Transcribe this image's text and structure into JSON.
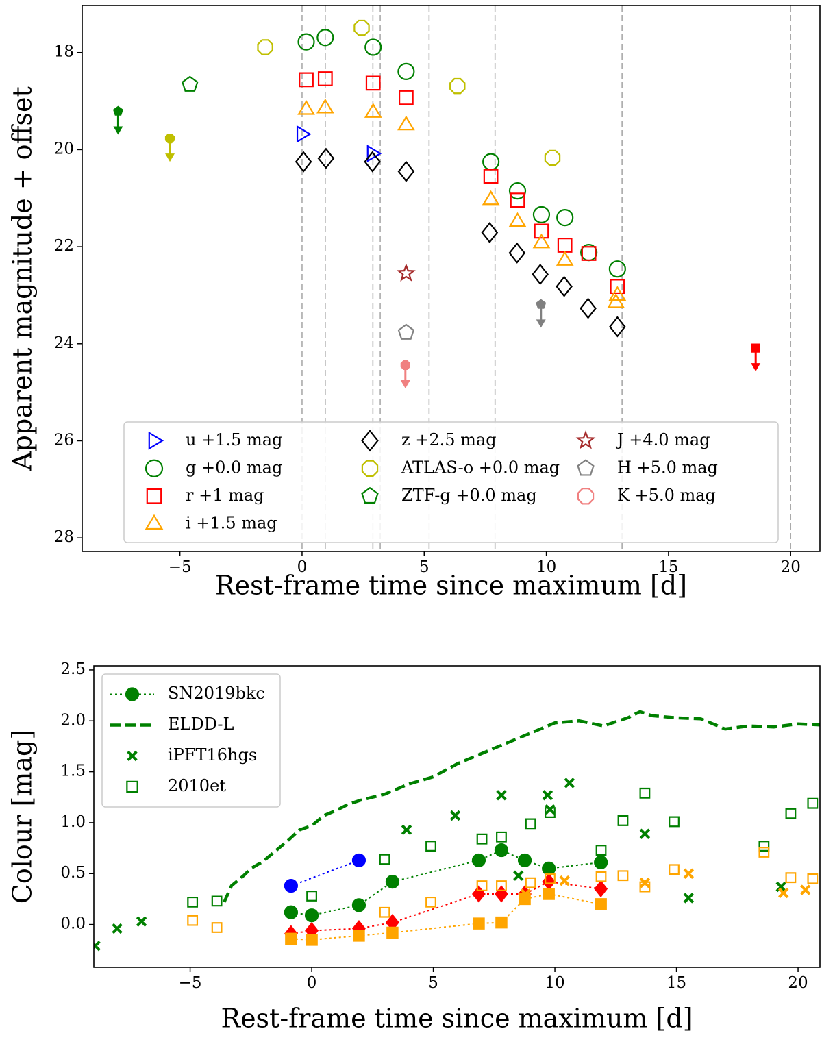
{
  "chart_data": [
    {
      "type": "scatter",
      "xlabel": "Rest-frame time since maximum [d]",
      "ylabel": "Apparent magnitude + offset",
      "xlim": [
        -9.0,
        21.2
      ],
      "ylim": [
        28.28,
        17.03
      ],
      "xticks": [
        {
          "value": -5,
          "label": "−5"
        },
        0,
        5,
        10,
        15,
        20
      ],
      "yticks": [
        18,
        20,
        22,
        24,
        26,
        28
      ],
      "vlines": [
        0,
        0.95,
        2.9,
        3.2,
        5.2,
        7.9,
        13.1,
        20.0
      ],
      "legend": "lower center",
      "legend_columns": 3,
      "series": [
        {
          "name": "u +1.5 mag",
          "color": "#0000ff",
          "marker": "triangle-right",
          "x": [
            0.0,
            2.88
          ],
          "values": [
            19.68,
            20.08
          ]
        },
        {
          "name": "g +0.0 mag",
          "color": "#008000",
          "marker": "circle",
          "x": [
            0.17,
            0.95,
            2.91,
            4.26,
            7.73,
            8.82,
            9.8,
            10.76,
            11.74,
            12.91
          ],
          "values": [
            17.78,
            17.69,
            17.89,
            18.39,
            20.25,
            20.85,
            21.34,
            21.4,
            22.12,
            22.46
          ]
        },
        {
          "name": "r +1 mag",
          "color": "#ff0000",
          "marker": "square",
          "x": [
            0.17,
            0.95,
            2.91,
            4.26,
            7.73,
            8.82,
            9.8,
            10.76,
            11.74,
            12.91
          ],
          "values": [
            18.56,
            18.54,
            18.63,
            18.93,
            20.55,
            21.04,
            21.68,
            21.97,
            22.14,
            22.82
          ],
          "upper_limits": {
            "x": [
              18.57
            ],
            "values": [
              24.09
            ]
          }
        },
        {
          "name": "i +1.5 mag",
          "color": "#ffa500",
          "marker": "triangle-up",
          "x": [
            0.17,
            0.95,
            2.91,
            4.26,
            7.73,
            8.82,
            9.8,
            10.76,
            12.91,
            12.85
          ],
          "values": [
            19.17,
            19.14,
            19.23,
            19.49,
            21.03,
            21.48,
            21.92,
            22.28,
            23.0,
            23.15
          ]
        },
        {
          "name": "z +2.5 mag",
          "color": "#000000",
          "marker": "diamond",
          "x": [
            0.06,
            0.98,
            2.88,
            4.26,
            7.68,
            8.8,
            9.75,
            10.73,
            11.71,
            12.91
          ],
          "values": [
            20.25,
            20.18,
            20.25,
            20.45,
            21.71,
            22.13,
            22.57,
            22.82,
            23.27,
            23.65
          ]
        },
        {
          "name": "ATLAS-o +0.0 mag",
          "color": "#bfbf00",
          "marker": "octagon",
          "x": [
            -1.51,
            2.44,
            6.36,
            10.25
          ],
          "values": [
            17.89,
            17.49,
            18.69,
            20.17
          ],
          "upper_limits": {
            "x": [
              -5.41
            ],
            "values": [
              19.77
            ]
          }
        },
        {
          "name": "ZTF-g +0.0 mag",
          "color": "#008000",
          "marker": "pentagon",
          "x": [
            -4.59
          ],
          "values": [
            18.66
          ],
          "upper_limits": {
            "x": [
              -7.53
            ],
            "values": [
              19.21
            ]
          }
        },
        {
          "name": "J +4.0 mag",
          "color": "#a52a2a",
          "marker": "star",
          "x": [
            4.26
          ],
          "values": [
            22.55
          ]
        },
        {
          "name": "H +5.0 mag",
          "color": "#808080",
          "marker": "pentagon",
          "x": [
            4.26
          ],
          "values": [
            23.77
          ],
          "upper_limits": {
            "x": [
              9.78
            ],
            "values": [
              23.19
            ]
          }
        },
        {
          "name": "K +5.0 mag",
          "color": "#f08080",
          "marker": "octagon",
          "x": [],
          "values": [],
          "upper_limits": {
            "x": [
              4.23
            ],
            "values": [
              24.44
            ]
          }
        }
      ]
    },
    {
      "type": "scatter",
      "xlabel": "Rest-frame time since maximum [d]",
      "ylabel": "Colour [mag]",
      "xlim": [
        -8.96,
        20.9
      ],
      "ylim": [
        -0.42,
        2.54
      ],
      "xticks": [
        {
          "value": -5,
          "label": "−5"
        },
        0,
        5,
        10,
        15,
        20
      ],
      "yticks": [
        {
          "value": 0,
          "label": "0.0"
        },
        0.5,
        {
          "value": 1,
          "label": "1.0"
        },
        1.5,
        {
          "value": 2,
          "label": "2.0"
        },
        2.5
      ],
      "legend": "upper left",
      "series": [
        {
          "name": "SN2019bkc",
          "color": "#008000",
          "style": "dotted",
          "marker": "filled-circle",
          "x": [
            -0.85,
            0,
            1.94,
            3.32,
            6.87,
            7.8,
            8.76,
            9.75,
            11.89
          ],
          "values": [
            0.12,
            0.09,
            0.19,
            0.42,
            0.63,
            0.73,
            0.63,
            0.55,
            0.61
          ]
        },
        {
          "color": "#0000ff",
          "style": "dotted",
          "marker": "filled-circle",
          "x": [
            -0.85,
            1.94
          ],
          "values": [
            0.38,
            0.63
          ]
        },
        {
          "color": "#ff0000",
          "style": "dotted",
          "marker": "filled-diamond",
          "x": [
            -0.85,
            0,
            1.94,
            3.32,
            6.87,
            7.8,
            8.76,
            9.75,
            11.89
          ],
          "values": [
            -0.09,
            -0.06,
            -0.04,
            0.02,
            0.3,
            0.3,
            0.3,
            0.42,
            0.35
          ]
        },
        {
          "color": "#ffa500",
          "style": "dotted",
          "marker": "filled-square",
          "x": [
            -0.85,
            0,
            1.94,
            3.32,
            6.87,
            7.8,
            8.76,
            9.75,
            11.89
          ],
          "values": [
            -0.14,
            -0.15,
            -0.11,
            -0.08,
            0.01,
            0.02,
            0.25,
            0.3,
            0.2
          ]
        },
        {
          "name": "ELDD-L",
          "color": "#008000",
          "style": "dashed",
          "x": [
            -3.6,
            -3.3,
            -2.8,
            -2.5,
            -2,
            -1.5,
            -1,
            -0.5,
            0,
            0.5,
            1,
            1.5,
            2,
            3,
            4,
            5,
            6,
            7,
            8,
            9,
            10,
            11,
            12,
            13,
            13.5,
            14,
            15,
            16,
            17,
            18,
            19,
            20,
            20.9
          ],
          "values": [
            0.22,
            0.38,
            0.48,
            0.55,
            0.62,
            0.72,
            0.82,
            0.93,
            0.97,
            1.07,
            1.12,
            1.18,
            1.22,
            1.28,
            1.38,
            1.45,
            1.58,
            1.68,
            1.78,
            1.88,
            1.98,
            2.0,
            1.95,
            2.03,
            2.09,
            2.05,
            2.03,
            2.02,
            1.92,
            1.95,
            1.94,
            1.97,
            1.96
          ]
        },
        {
          "name": "iPFT16hgs",
          "color": "#008000",
          "marker": "x",
          "x": [
            -8.9,
            -8,
            -7,
            3.9,
            5.9,
            7.8,
            8.5,
            9.7,
            9.8,
            10.6,
            13.7,
            15.5,
            19.3
          ],
          "values": [
            -0.21,
            -0.04,
            0.03,
            0.93,
            1.07,
            1.27,
            0.48,
            1.27,
            1.13,
            1.39,
            0.89,
            0.26,
            0.37
          ]
        },
        {
          "color": "#ffa500",
          "marker": "x",
          "x": [
            8.8,
            10.4,
            13.7,
            15.5,
            19.4,
            20.3
          ],
          "values": [
            0.3,
            0.43,
            0.41,
            0.5,
            0.31,
            0.34
          ]
        },
        {
          "name": "2010et",
          "color": "#008000",
          "marker": "square",
          "x": [
            -4.9,
            -3.9,
            0,
            3,
            4.9,
            7,
            7.8,
            9,
            9.8,
            11.9,
            12.8,
            13.7,
            14.9,
            18.6,
            19.7,
            20.6
          ],
          "values": [
            0.22,
            0.23,
            0.28,
            0.64,
            0.77,
            0.84,
            0.86,
            0.99,
            1.1,
            0.73,
            1.02,
            1.29,
            1.01,
            0.77,
            1.09,
            1.19
          ]
        },
        {
          "color": "#ffa500",
          "marker": "square",
          "x": [
            -4.9,
            -3.9,
            3,
            4.9,
            7,
            7.8,
            9,
            9.8,
            11.9,
            12.8,
            13.7,
            14.9,
            18.6,
            19.7,
            20.6
          ],
          "values": [
            0.04,
            -0.03,
            0.12,
            0.22,
            0.38,
            0.38,
            0.41,
            0.45,
            0.47,
            0.48,
            0.37,
            0.54,
            0.71,
            0.46,
            0.45
          ]
        }
      ]
    }
  ]
}
